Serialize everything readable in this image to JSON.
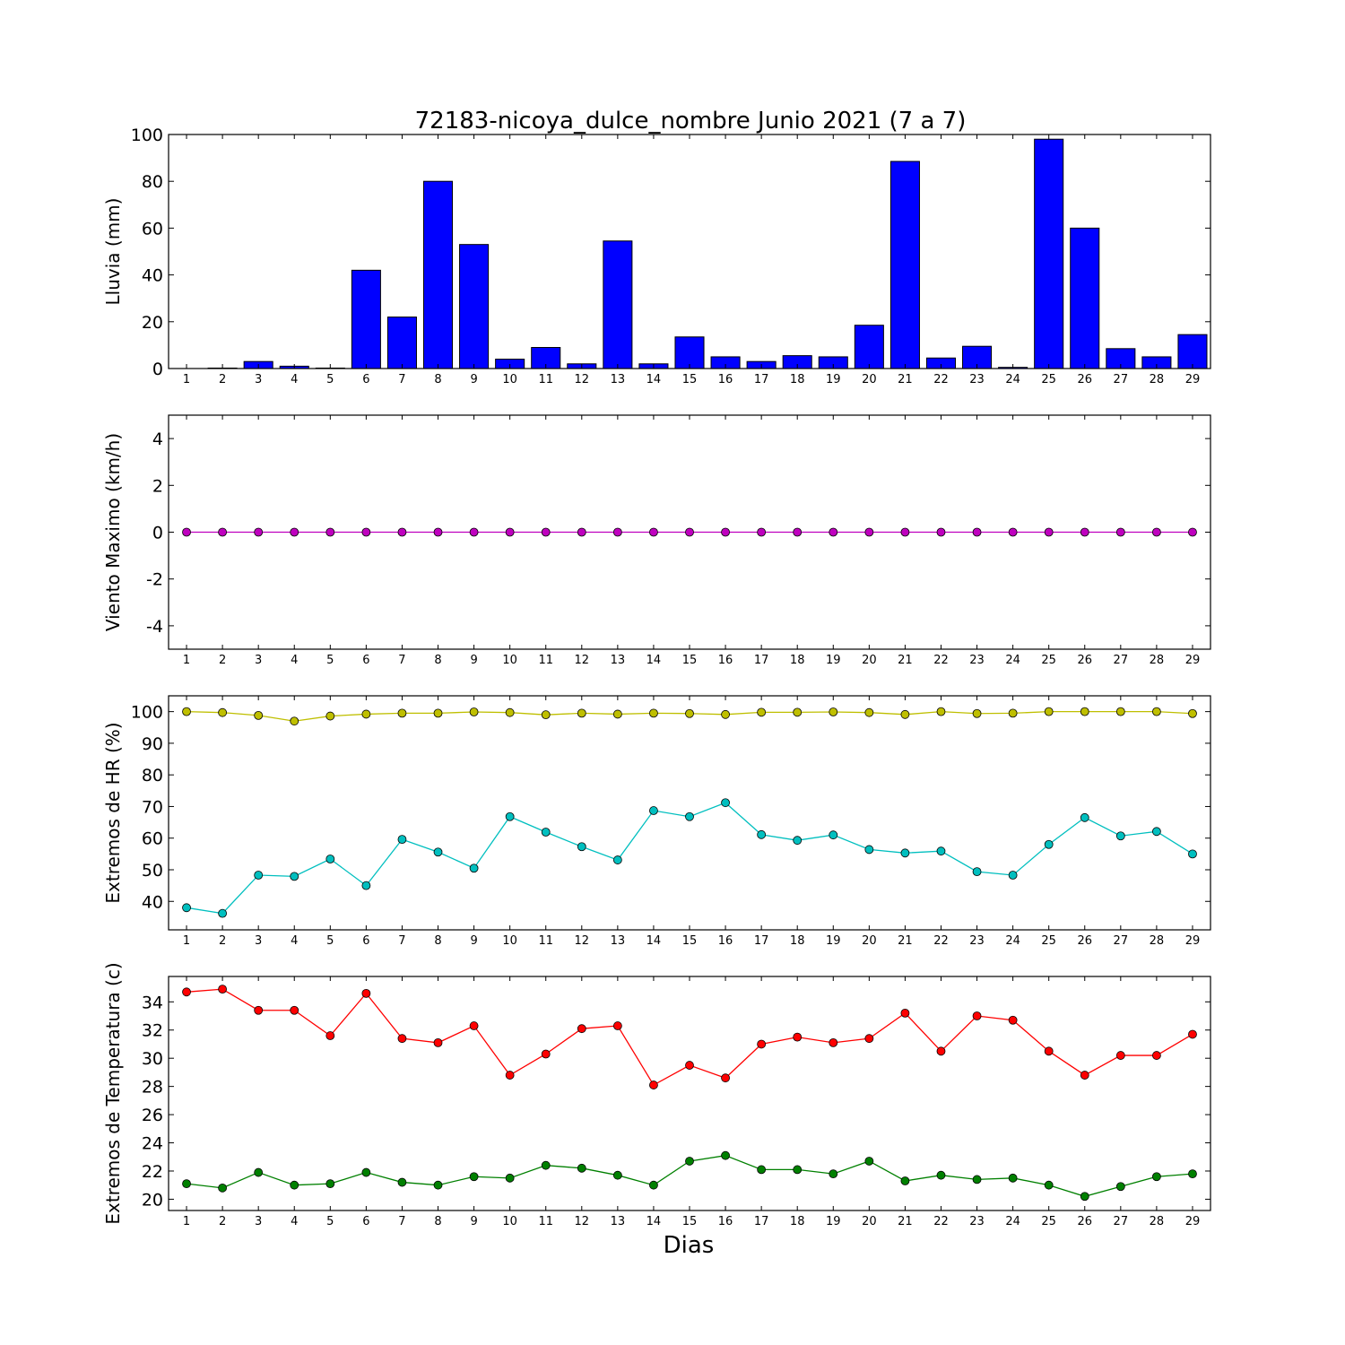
{
  "chart_data": {
    "title": "72183-nicoya_dulce_nombre Junio 2021  (7 a 7)",
    "xlabel": "Dias",
    "x": [
      1,
      2,
      3,
      4,
      5,
      6,
      7,
      8,
      9,
      10,
      11,
      12,
      13,
      14,
      15,
      16,
      17,
      18,
      19,
      20,
      21,
      22,
      23,
      24,
      25,
      26,
      27,
      28,
      29
    ],
    "panels": [
      {
        "type": "bar",
        "ylabel": "Lluvia (mm)",
        "ylim": [
          0,
          100
        ],
        "yticks": [
          0,
          20,
          40,
          60,
          80,
          100
        ],
        "series": [
          {
            "color": "#0000ff",
            "values": [
              0,
              0.2,
              3,
              1,
              0.2,
              42,
              22,
              80,
              53,
              4,
              9,
              2,
              54.5,
              2,
              13.5,
              5,
              3,
              5.5,
              5,
              18.5,
              88.5,
              4.5,
              9.5,
              0.5,
              98,
              60,
              8.5,
              5,
              14.5
            ]
          }
        ]
      },
      {
        "type": "line",
        "ylabel": "Viento Maximo (km/h)",
        "ylim": [
          -5,
          5
        ],
        "yticks": [
          -4,
          -2,
          0,
          2,
          4
        ],
        "series": [
          {
            "color": "#bf00bf",
            "values": [
              0,
              0,
              0,
              0,
              0,
              0,
              0,
              0,
              0,
              0,
              0,
              0,
              0,
              0,
              0,
              0,
              0,
              0,
              0,
              0,
              0,
              0,
              0,
              0,
              0,
              0,
              0,
              0,
              0
            ]
          }
        ]
      },
      {
        "type": "line",
        "ylabel": "Extremos de HR (%)",
        "ylim": [
          31,
          105
        ],
        "yticks": [
          40,
          50,
          60,
          70,
          80,
          90,
          100
        ],
        "series": [
          {
            "color": "#bfbf00",
            "values": [
              100,
              99.7,
              98.8,
              97,
              98.6,
              99.2,
              99.5,
              99.5,
              99.9,
              99.7,
              99,
              99.5,
              99.2,
              99.5,
              99.4,
              99.1,
              99.8,
              99.8,
              99.9,
              99.7,
              99.1,
              100,
              99.4,
              99.5,
              100,
              100,
              100,
              100,
              99.4
            ]
          },
          {
            "color": "#00bfbf",
            "values": [
              38,
              36.2,
              48.3,
              47.9,
              53.4,
              45,
              59.6,
              55.6,
              50.5,
              66.8,
              61.9,
              57.3,
              53.1,
              68.7,
              66.8,
              71.2,
              61.1,
              59.3,
              61,
              56.4,
              55.3,
              55.9,
              49.4,
              48.3,
              58,
              66.5,
              60.7,
              62.1,
              55
            ]
          }
        ]
      },
      {
        "type": "line",
        "ylabel": "Extremos de Temperatura (c)",
        "ylim": [
          19.2,
          35.8
        ],
        "yticks": [
          20,
          22,
          24,
          26,
          28,
          30,
          32,
          34
        ],
        "series": [
          {
            "color": "#ff0000",
            "values": [
              34.7,
              34.9,
              33.4,
              33.4,
              31.6,
              34.6,
              31.4,
              31.1,
              32.3,
              28.8,
              30.3,
              32.1,
              32.3,
              28.1,
              29.5,
              28.6,
              31,
              31.5,
              31.1,
              31.4,
              33.2,
              30.5,
              33,
              32.7,
              30.5,
              28.8,
              30.2,
              30.2,
              31.7
            ]
          },
          {
            "color": "#008000",
            "values": [
              21.1,
              20.8,
              21.9,
              21,
              21.1,
              21.9,
              21.2,
              21,
              21.6,
              21.5,
              22.4,
              22.2,
              21.7,
              21,
              22.7,
              23.1,
              22.1,
              22.1,
              21.8,
              22.7,
              21.3,
              21.7,
              21.4,
              21.5,
              21,
              20.2,
              20.9,
              21.6,
              21.8
            ]
          }
        ]
      }
    ]
  }
}
